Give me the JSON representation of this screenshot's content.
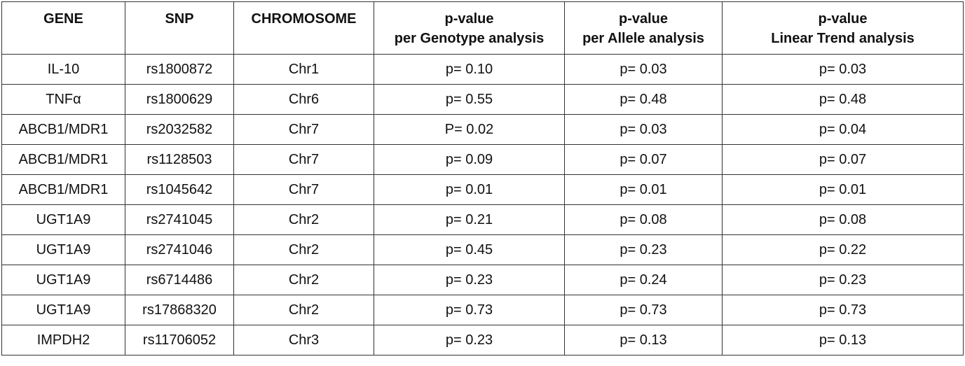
{
  "table": {
    "header": [
      [
        "GENE"
      ],
      [
        "SNP"
      ],
      [
        "CHROMOSOME"
      ],
      [
        "p-value",
        "per Genotype analysis"
      ],
      [
        "p-value",
        "per Allele analysis"
      ],
      [
        "p-value",
        "Linear Trend analysis"
      ]
    ],
    "rows": [
      [
        "IL-10",
        "rs1800872",
        "Chr1",
        "p= 0.10",
        "p= 0.03",
        "p= 0.03"
      ],
      [
        "TNFα",
        "rs1800629",
        "Chr6",
        "p= 0.55",
        "p= 0.48",
        "p= 0.48"
      ],
      [
        "ABCB1/MDR1",
        "rs2032582",
        "Chr7",
        "P= 0.02",
        "p= 0.03",
        "p= 0.04"
      ],
      [
        "ABCB1/MDR1",
        "rs1128503",
        "Chr7",
        "p= 0.09",
        "p= 0.07",
        "p= 0.07"
      ],
      [
        "ABCB1/MDR1",
        "rs1045642",
        "Chr7",
        "p= 0.01",
        "p= 0.01",
        "p= 0.01"
      ],
      [
        "UGT1A9",
        "rs2741045",
        "Chr2",
        "p= 0.21",
        "p= 0.08",
        "p= 0.08"
      ],
      [
        "UGT1A9",
        "rs2741046",
        "Chr2",
        "p= 0.45",
        "p= 0.23",
        "p= 0.22"
      ],
      [
        "UGT1A9",
        "rs6714486",
        "Chr2",
        "p= 0.23",
        "p= 0.24",
        "p= 0.23"
      ],
      [
        "UGT1A9",
        "rs17868320",
        "Chr2",
        "p= 0.73",
        "p= 0.73",
        "p= 0.73"
      ],
      [
        "IMPDH2",
        "rs11706052",
        "Chr3",
        "p= 0.23",
        "p= 0.13",
        "p= 0.13"
      ]
    ]
  }
}
